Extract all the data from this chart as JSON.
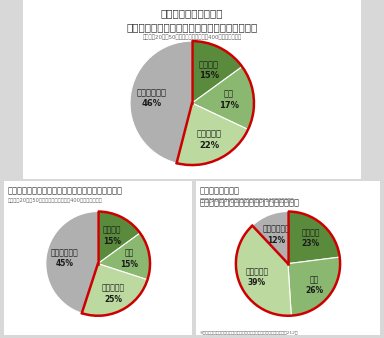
{
  "chart1": {
    "title": "冷えを感じる環境下で\n便秘になりやすいと感じたことがありますか？",
    "subtitle": "全国男女20代〜50代のオフィスワーカー400名（単一回答）",
    "labels": [
      "よくある",
      "ある",
      "たまにある",
      "まったくない"
    ],
    "values": [
      15,
      17,
      22,
      46
    ],
    "colors": [
      "#5a8a3c",
      "#8ab870",
      "#bcd9a0",
      "#b0b0b0"
    ],
    "start_angle": 90
  },
  "chart2": {
    "title": "夏に便秘になりやすいと感じたことはありますか？",
    "subtitle": "全国男女20代〜50代のオフィスワーカー400名（単一回答）",
    "labels": [
      "よくある",
      "ある",
      "たまにある",
      "まったくない"
    ],
    "values": [
      15,
      15,
      25,
      45
    ],
    "colors": [
      "#5a8a3c",
      "#8ab870",
      "#bcd9a0",
      "#b0b0b0"
    ],
    "start_angle": 90
  },
  "chart3": {
    "title": "他の季節に比べ、\n夏の便秘が辛いと感じたことはありますか？",
    "subtitle": "全国男女20代〜50代のオフィスワーカー212名（単一回答）",
    "labels": [
      "よくある",
      "ある",
      "たまにある",
      "まったくない"
    ],
    "values": [
      23,
      26,
      39,
      12
    ],
    "colors": [
      "#5a8a3c",
      "#8ab870",
      "#bcd9a0",
      "#b0b0b0"
    ],
    "start_angle": 90
  },
  "footnote": "※冷えを感じる環境下で便秘になりやすいと感じたことがあると回答した212名",
  "bg_color": "#d8d8d8",
  "panel_color": "#ffffff",
  "red_color": "#cc0000",
  "text_color": "#333333",
  "label_fontsize": 6.0,
  "title_fontsize1": 7.5,
  "title_fontsize2": 6.0,
  "subtitle_fontsize": 4.0
}
